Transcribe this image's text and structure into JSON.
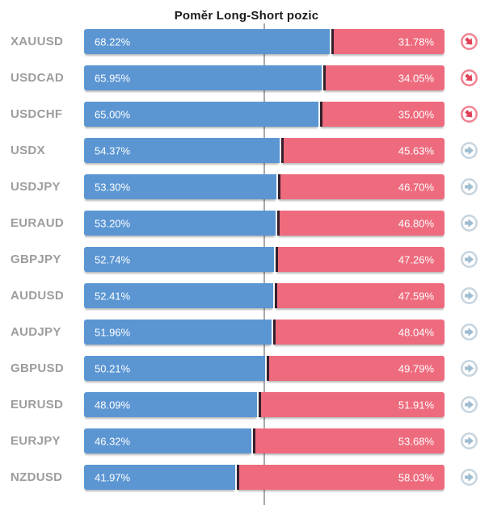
{
  "title": "Poměr Long-Short pozic",
  "colors": {
    "long_bar": "#5b96d3",
    "short_bar": "#ee6b7e",
    "boundary_divider": "#35202b",
    "center_gridline": "#a9a9a9",
    "symbol_label": "#9d9d9d",
    "title_text": "#1b1b1b",
    "percent_text": "#ffffff",
    "icon_red_ring": "#f28392",
    "icon_red_arrow": "#e04159",
    "icon_gray_ring": "#c6d4de",
    "icon_gray_arrow": "#9fbdd1"
  },
  "chart_data": {
    "type": "bar",
    "orientation": "horizontal-stacked",
    "title": "Poměr Long-Short pozic",
    "categories": [
      "XAUUSD",
      "USDCAD",
      "USDCHF",
      "USDX",
      "USDJPY",
      "EURAUD",
      "GBPJPY",
      "AUDUSD",
      "AUDJPY",
      "GBPUSD",
      "EURUSD",
      "EURJPY",
      "NZDUSD"
    ],
    "series": [
      {
        "name": "Long",
        "color": "#5b96d3",
        "values": [
          68.22,
          65.95,
          65.0,
          54.37,
          53.3,
          53.2,
          52.74,
          52.41,
          51.96,
          50.21,
          48.09,
          46.32,
          41.97
        ]
      },
      {
        "name": "Short",
        "color": "#ee6b7e",
        "values": [
          31.78,
          34.05,
          35.0,
          45.63,
          46.7,
          46.8,
          47.26,
          47.59,
          48.04,
          49.79,
          51.91,
          53.68,
          58.03
        ]
      }
    ],
    "xlim": [
      0,
      100
    ],
    "center_reference_line": 50,
    "grid": "single-vertical-center-line",
    "legend_position": "none",
    "value_labels": "inside-segments"
  },
  "rows": [
    {
      "symbol": "XAUUSD",
      "long": 68.22,
      "short": 31.78,
      "long_label": "68.22%",
      "short_label": "31.78%",
      "icon": "down-right-red"
    },
    {
      "symbol": "USDCAD",
      "long": 65.95,
      "short": 34.05,
      "long_label": "65.95%",
      "short_label": "34.05%",
      "icon": "down-right-red"
    },
    {
      "symbol": "USDCHF",
      "long": 65.0,
      "short": 35.0,
      "long_label": "65.00%",
      "short_label": "35.00%",
      "icon": "down-right-red"
    },
    {
      "symbol": "USDX",
      "long": 54.37,
      "short": 45.63,
      "long_label": "54.37%",
      "short_label": "45.63%",
      "icon": "right-gray"
    },
    {
      "symbol": "USDJPY",
      "long": 53.3,
      "short": 46.7,
      "long_label": "53.30%",
      "short_label": "46.70%",
      "icon": "right-gray"
    },
    {
      "symbol": "EURAUD",
      "long": 53.2,
      "short": 46.8,
      "long_label": "53.20%",
      "short_label": "46.80%",
      "icon": "right-gray"
    },
    {
      "symbol": "GBPJPY",
      "long": 52.74,
      "short": 47.26,
      "long_label": "52.74%",
      "short_label": "47.26%",
      "icon": "right-gray"
    },
    {
      "symbol": "AUDUSD",
      "long": 52.41,
      "short": 47.59,
      "long_label": "52.41%",
      "short_label": "47.59%",
      "icon": "right-gray"
    },
    {
      "symbol": "AUDJPY",
      "long": 51.96,
      "short": 48.04,
      "long_label": "51.96%",
      "short_label": "48.04%",
      "icon": "right-gray"
    },
    {
      "symbol": "GBPUSD",
      "long": 50.21,
      "short": 49.79,
      "long_label": "50.21%",
      "short_label": "49.79%",
      "icon": "right-gray"
    },
    {
      "symbol": "EURUSD",
      "long": 48.09,
      "short": 51.91,
      "long_label": "48.09%",
      "short_label": "51.91%",
      "icon": "right-gray"
    },
    {
      "symbol": "EURJPY",
      "long": 46.32,
      "short": 53.68,
      "long_label": "46.32%",
      "short_label": "53.68%",
      "icon": "right-gray"
    },
    {
      "symbol": "NZDUSD",
      "long": 41.97,
      "short": 58.03,
      "long_label": "41.97%",
      "short_label": "58.03%",
      "icon": "right-gray"
    }
  ]
}
